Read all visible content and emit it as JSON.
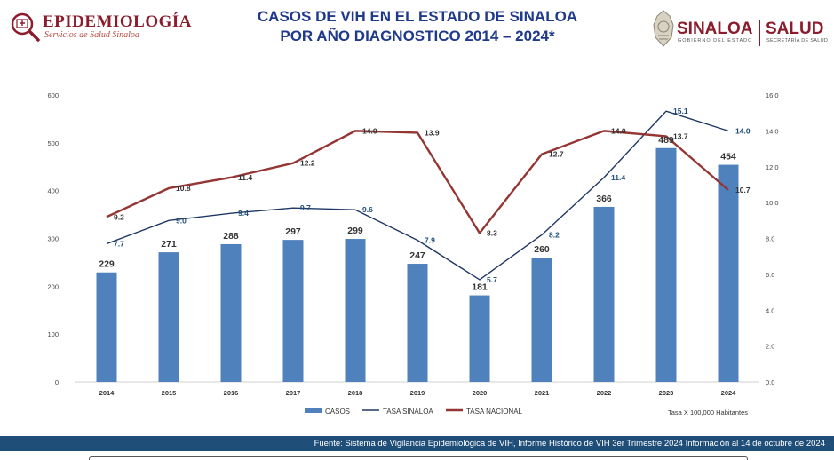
{
  "header": {
    "left_brand": "EPIDEMIOLOGÍA",
    "left_tagline": "Servicios de Salud Sinaloa",
    "title_line1": "CASOS DE VIH EN EL ESTADO DE SINALOA",
    "title_line2": "POR AÑO DIAGNOSTICO 2014 – 2024*",
    "right_brand": "SINALOA",
    "right_brand_sub": "GOBIERNO DEL ESTADO",
    "right_salud": "SALUD",
    "right_salud_sub": "SECRETARÍA DE SALUD"
  },
  "chart_data": {
    "type": "bar",
    "categories": [
      "2014",
      "2015",
      "2016",
      "2017",
      "2018",
      "2019",
      "2020",
      "2021",
      "2022",
      "2023",
      "2024"
    ],
    "series": [
      {
        "name": "CASOS",
        "type": "bar",
        "axis": "left",
        "color": "#4f81bd",
        "values": [
          229,
          271,
          288,
          297,
          299,
          247,
          181,
          260,
          366,
          489,
          454
        ]
      },
      {
        "name": "TASA SINALOA",
        "type": "line",
        "axis": "right",
        "color": "#1f3864",
        "values": [
          7.7,
          9.0,
          9.4,
          9.7,
          9.6,
          7.9,
          5.7,
          8.2,
          11.4,
          15.1,
          14.0
        ]
      },
      {
        "name": "TASA NACIONAL",
        "type": "line",
        "axis": "right",
        "color": "#943634",
        "values": [
          9.2,
          10.8,
          11.4,
          12.2,
          14.0,
          13.9,
          8.3,
          12.7,
          14.0,
          13.7,
          10.7
        ]
      }
    ],
    "y_left": {
      "min": 0,
      "max": 600,
      "ticks": [
        "0",
        "100",
        "200",
        "300",
        "400",
        "500",
        "600"
      ]
    },
    "y_right": {
      "min": 0,
      "max": 16,
      "ticks": [
        "0.0",
        "2.0",
        "4.0",
        "6.0",
        "8.0",
        "10.0",
        "12.0",
        "14.0",
        "16.0"
      ]
    },
    "legend_position": "bottom",
    "grid": false,
    "note": "Tasa X 100,000 Habitantes"
  },
  "footer": {
    "source": "Fuente: Sistema de Vigilancia Epidemiológica de VIH, Informe Histórico de VIH 3er Trimestre 2024 Información al 14 de octubre de 2024"
  }
}
